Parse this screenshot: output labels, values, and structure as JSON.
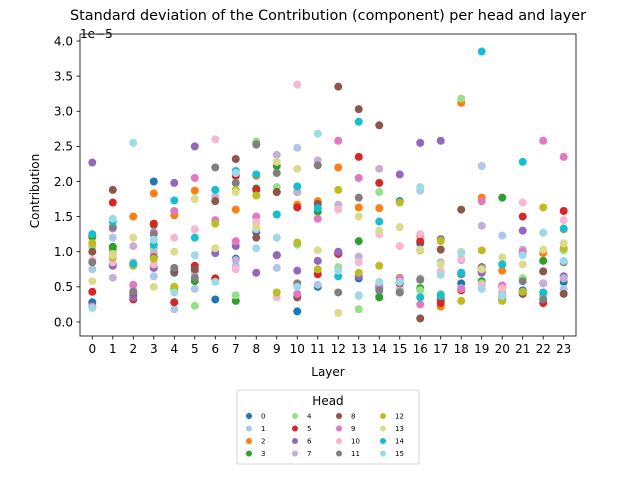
{
  "chart_data": {
    "type": "scatter",
    "title": "Standard deviation of the Contribution (component) per head and layer",
    "xlabel": "Layer",
    "ylabel": "Contribution",
    "y_multiplier_label": "1e−5",
    "y_scale_factor": 1e-05,
    "xlim": [
      -0.6,
      23.6
    ],
    "ylim": [
      -0.2,
      4.1
    ],
    "x_ticks": [
      "0",
      "1",
      "2",
      "3",
      "4",
      "5",
      "6",
      "7",
      "8",
      "9",
      "10",
      "11",
      "12",
      "13",
      "14",
      "15",
      "16",
      "17",
      "18",
      "19",
      "20",
      "21",
      "22",
      "23"
    ],
    "y_ticks": [
      "0.0",
      "0.5",
      "1.0",
      "1.5",
      "2.0",
      "2.5",
      "3.0",
      "3.5",
      "4.0"
    ],
    "grid": false,
    "legend": {
      "title": "Head",
      "placement": "bottom-center",
      "columns": 4
    },
    "series": [
      {
        "name": "0",
        "color": "#1f77b4",
        "values": [
          0.28,
          0.82,
          0.38,
          2.0,
          0.7,
          0.72,
          0.32,
          0.9,
          1.28,
          0.95,
          0.15,
          0.5,
          0.97,
          0.62,
          0.5,
          1.72,
          1.12,
          0.3,
          0.55,
          0.75,
          0.32,
          0.45,
          0.37,
          0.57
        ]
      },
      {
        "name": "1",
        "color": "#aec7e8",
        "values": [
          0.75,
          1.2,
          0.45,
          0.65,
          0.18,
          0.47,
          0.58,
          0.8,
          1.32,
          0.77,
          2.48,
          0.53,
          0.98,
          0.37,
          0.38,
          0.47,
          1.87,
          0.33,
          0.48,
          2.22,
          1.23,
          0.42,
          1.27,
          0.47
        ]
      },
      {
        "name": "2",
        "color": "#ff7f0e",
        "values": [
          1.2,
          1.03,
          1.5,
          1.83,
          1.52,
          1.87,
          1.78,
          1.6,
          2.08,
          0.95,
          1.67,
          1.72,
          2.2,
          1.63,
          1.62,
          0.63,
          1.23,
          0.22,
          3.12,
          1.77,
          0.73,
          0.97,
          0.98,
          1.32
        ]
      },
      {
        "name": "3",
        "color": "#2ca02c",
        "values": [
          1.22,
          1.07,
          0.82,
          1.38,
          0.48,
          0.58,
          0.62,
          0.3,
          1.9,
          2.22,
          1.85,
          1.57,
          0.98,
          1.15,
          0.35,
          0.55,
          0.48,
          0.33,
          0.68,
          0.58,
          1.77,
          0.62,
          0.87,
          1.05
        ]
      },
      {
        "name": "4",
        "color": "#98df8a",
        "values": [
          1.07,
          0.97,
          0.85,
          1.05,
          0.5,
          0.23,
          1.02,
          0.38,
          2.57,
          1.92,
          1.1,
          0.72,
          0.78,
          0.18,
          1.85,
          0.62,
          0.45,
          0.4,
          3.18,
          0.55,
          0.42,
          0.62,
          0.37,
          1.02
        ]
      },
      {
        "name": "5",
        "color": "#d62728",
        "values": [
          0.43,
          1.7,
          0.32,
          1.4,
          0.28,
          0.8,
          0.62,
          2.08,
          1.88,
          1.85,
          1.63,
          0.68,
          0.97,
          2.35,
          1.98,
          0.55,
          1.15,
          0.27,
          0.45,
          0.72,
          0.5,
          1.5,
          0.27,
          1.58
        ]
      },
      {
        "name": "6",
        "color": "#9467bd",
        "values": [
          2.27,
          0.8,
          0.35,
          0.77,
          1.98,
          2.5,
          0.98,
          1.08,
          0.7,
          0.95,
          0.73,
          0.87,
          1.0,
          0.65,
          0.48,
          2.1,
          2.55,
          2.58,
          0.68,
          0.7,
          0.37,
          1.3,
          0.55,
          0.65
        ]
      },
      {
        "name": "7",
        "color": "#c5b0d5",
        "values": [
          0.88,
          0.63,
          1.08,
          0.98,
          0.72,
          0.7,
          1.78,
          0.88,
          2.52,
          2.38,
          1.85,
          2.3,
          1.67,
          0.93,
          2.18,
          0.45,
          0.62,
          0.85,
          0.88,
          1.37,
          0.38,
          1.03,
          0.55,
          0.62
        ]
      },
      {
        "name": "8",
        "color": "#8c564b",
        "values": [
          1.0,
          1.88,
          0.42,
          0.92,
          0.72,
          0.75,
          1.72,
          2.32,
          1.2,
          1.85,
          0.35,
          1.68,
          3.35,
          3.03,
          2.8,
          0.42,
          0.05,
          1.03,
          1.6,
          0.78,
          0.5,
          0.4,
          0.72,
          0.4
        ]
      },
      {
        "name": "9",
        "color": "#e377c2",
        "values": [
          0.22,
          1.33,
          0.53,
          1.28,
          1.58,
          2.05,
          1.45,
          1.15,
          1.5,
          1.53,
          0.4,
          1.47,
          2.58,
          2.05,
          0.52,
          0.62,
          0.25,
          0.37,
          0.47,
          1.72,
          0.52,
          1.0,
          2.58,
          2.35
        ]
      },
      {
        "name": "10",
        "color": "#f7b6d2",
        "values": [
          0.88,
          0.85,
          0.85,
          0.82,
          1.2,
          1.32,
          2.6,
          0.75,
          1.42,
          0.35,
          3.38,
          2.23,
          1.6,
          0.85,
          1.25,
          1.08,
          1.25,
          0.72,
          0.9,
          0.52,
          0.48,
          1.7,
          0.42,
          1.45
        ]
      },
      {
        "name": "11",
        "color": "#7f7f7f",
        "values": [
          0.85,
          1.35,
          0.43,
          1.25,
          0.77,
          0.63,
          2.2,
          1.98,
          2.53,
          2.12,
          0.55,
          2.23,
          0.42,
          1.77,
          0.45,
          0.42,
          0.6,
          1.18,
          0.7,
          0.78,
          0.37,
          0.58,
          0.32,
          0.85
        ]
      },
      {
        "name": "12",
        "color": "#bcbd22",
        "values": [
          1.12,
          0.92,
          0.8,
          0.9,
          0.5,
          1.75,
          1.4,
          1.88,
          1.8,
          0.42,
          1.13,
          0.75,
          1.88,
          0.7,
          0.8,
          1.7,
          1.02,
          1.15,
          0.3,
          1.02,
          0.3,
          0.43,
          1.63,
          1.05
        ]
      },
      {
        "name": "13",
        "color": "#dbdb8d",
        "values": [
          0.58,
          0.95,
          1.2,
          0.5,
          1.0,
          1.75,
          1.05,
          1.85,
          1.35,
          2.28,
          2.18,
          1.02,
          0.13,
          1.5,
          1.3,
          1.35,
          1.03,
          0.82,
          1.0,
          0.75,
          0.92,
          0.82,
          1.03,
          1.12
        ]
      },
      {
        "name": "14",
        "color": "#17becf",
        "values": [
          1.25,
          1.43,
          0.83,
          1.1,
          1.73,
          1.2,
          1.88,
          2.15,
          2.1,
          1.53,
          1.93,
          1.62,
          0.65,
          2.85,
          1.43,
          0.57,
          0.35,
          0.38,
          0.7,
          3.85,
          0.82,
          2.28,
          0.42,
          1.33
        ]
      },
      {
        "name": "15",
        "color": "#9edae5",
        "values": [
          0.2,
          1.47,
          2.55,
          1.17,
          0.42,
          0.95,
          0.57,
          2.12,
          1.05,
          1.2,
          0.5,
          2.68,
          0.73,
          0.38,
          0.57,
          0.57,
          1.92,
          0.67,
          0.98,
          0.47,
          0.37,
          0.95,
          1.27,
          0.87
        ]
      }
    ]
  }
}
